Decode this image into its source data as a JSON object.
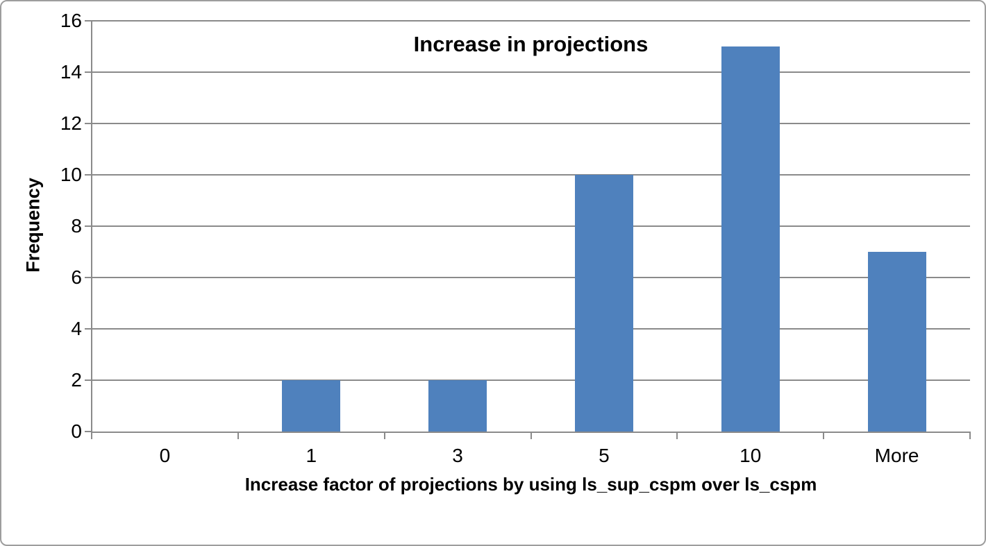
{
  "frame": {
    "background": "#FFFFFF",
    "border_color": "#9D9D9D"
  },
  "chart_data": {
    "type": "bar",
    "title": "Increase in projections",
    "categories": [
      "0",
      "1",
      "3",
      "5",
      "10",
      "More"
    ],
    "values": [
      0,
      2,
      2,
      10,
      15,
      7
    ],
    "xlabel": "Increase factor of projections by using ls_sup_cspm over ls_cspm",
    "ylabel": "Frequency",
    "ylim": [
      0,
      16
    ],
    "ytick_step": 2,
    "yticks": [
      0,
      2,
      4,
      6,
      8,
      10,
      12,
      14,
      16
    ],
    "grid": "horizontal-major",
    "legend": "none",
    "bar_gap_ratio": 0.6,
    "colors": {
      "bar": "#4F81BD",
      "gridline": "#8A8A8A",
      "axis": "#8A8A8A",
      "text": "#000000"
    }
  }
}
